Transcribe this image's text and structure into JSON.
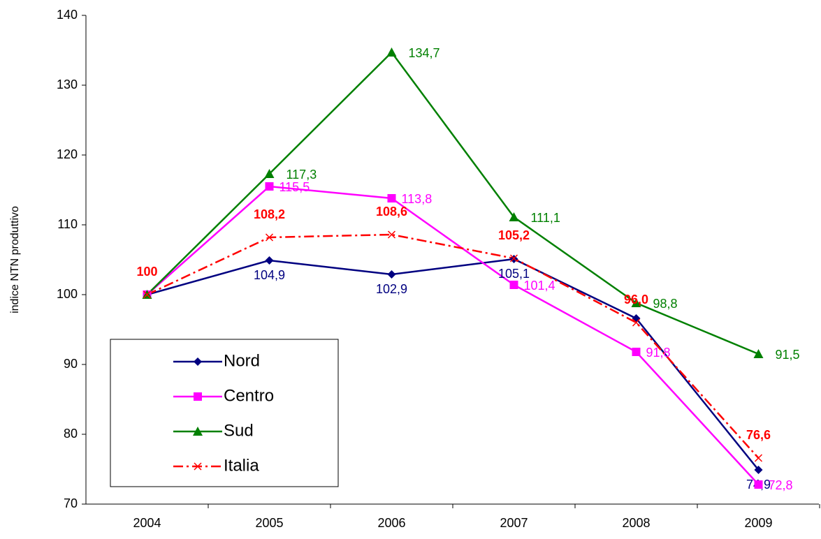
{
  "chart_data": {
    "type": "line",
    "y_label": "indice NTN produttivo",
    "categories": [
      "2004",
      "2005",
      "2006",
      "2007",
      "2008",
      "2009"
    ],
    "ylim": [
      70,
      140
    ],
    "yticks": [
      70,
      80,
      90,
      100,
      110,
      120,
      130,
      140
    ],
    "grid": false,
    "legend": "lower left",
    "series": [
      {
        "name": "Nord",
        "color": "#000080",
        "marker": "diamond",
        "dash": "solid",
        "values": [
          100,
          104.9,
          102.9,
          105.1,
          96.6,
          74.9
        ],
        "value_labels": [
          null,
          "104,9",
          "102,9",
          "105,1",
          null,
          "74,9"
        ]
      },
      {
        "name": "Centro",
        "color": "#ff00ff",
        "marker": "square",
        "dash": "solid",
        "values": [
          100,
          115.5,
          113.8,
          101.4,
          91.8,
          72.8
        ],
        "value_labels": [
          null,
          "115,5",
          "113,8",
          "101,4",
          "91,8",
          "72,8"
        ]
      },
      {
        "name": "Sud",
        "color": "#008000",
        "marker": "triangle",
        "dash": "solid",
        "values": [
          100,
          117.3,
          134.7,
          111.1,
          98.8,
          91.5
        ],
        "value_labels": [
          null,
          "117,3",
          "134,7",
          "111,1",
          "98,8",
          "91,5"
        ]
      },
      {
        "name": "Italia",
        "color": "#ff0000",
        "marker": "x",
        "dash": "dashdot",
        "values": [
          100,
          108.2,
          108.6,
          105.2,
          96.0,
          76.6
        ],
        "value_labels": [
          "100",
          "108,2",
          "108,6",
          "105,2",
          "96,0",
          "76,6"
        ]
      }
    ]
  }
}
